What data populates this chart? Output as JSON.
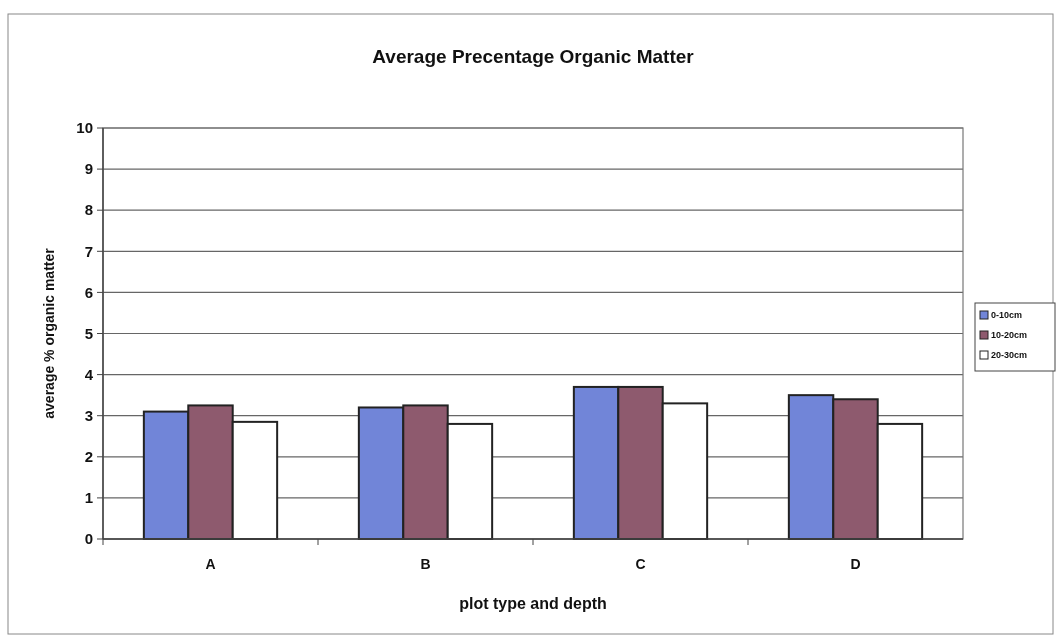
{
  "chart_data": {
    "type": "bar",
    "title": "Average Precentage Organic Matter",
    "xlabel": "plot type and depth",
    "ylabel": "average % organic matter",
    "categories": [
      "A",
      "B",
      "C",
      "D"
    ],
    "series": [
      {
        "name": "0-10cm",
        "color": "#7185d8",
        "values": [
          3.1,
          3.2,
          3.7,
          3.5
        ]
      },
      {
        "name": "10-20cm",
        "color": "#8e5a6e",
        "values": [
          3.25,
          3.25,
          3.7,
          3.4
        ]
      },
      {
        "name": "20-30cm",
        "color": "#ffffff",
        "values": [
          2.85,
          2.8,
          3.3,
          2.8
        ]
      }
    ],
    "ylim": [
      0,
      10
    ],
    "yticks": [
      0,
      1,
      2,
      3,
      4,
      5,
      6,
      7,
      8,
      9,
      10
    ],
    "grid": "y",
    "legend": "right"
  }
}
